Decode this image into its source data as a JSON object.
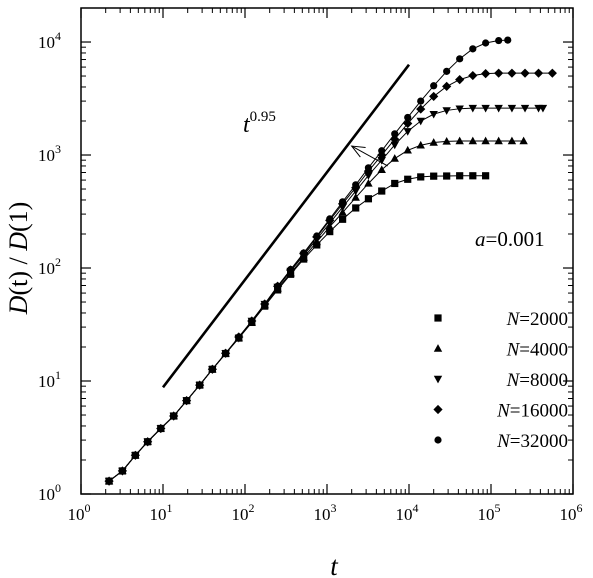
{
  "chart_data": {
    "type": "scatter",
    "xscale": "log",
    "yscale": "log",
    "xlim": [
      1,
      1000000
    ],
    "ylim": [
      1,
      20000
    ],
    "xlabel": "t",
    "ylabel": "D(t) / D(1)",
    "xticks": [
      {
        "value": 1,
        "base": "10",
        "exp": "0"
      },
      {
        "value": 10,
        "base": "10",
        "exp": "1"
      },
      {
        "value": 100,
        "base": "10",
        "exp": "2"
      },
      {
        "value": 1000,
        "base": "10",
        "exp": "3"
      },
      {
        "value": 10000,
        "base": "10",
        "exp": "4"
      },
      {
        "value": 100000,
        "base": "10",
        "exp": "5"
      },
      {
        "value": 1000000,
        "base": "10",
        "exp": "6"
      }
    ],
    "yticks": [
      {
        "value": 1,
        "base": "10",
        "exp": "0"
      },
      {
        "value": 10,
        "base": "10",
        "exp": "1"
      },
      {
        "value": 100,
        "base": "10",
        "exp": "2"
      },
      {
        "value": 1000,
        "base": "10",
        "exp": "3"
      },
      {
        "value": 10000,
        "base": "10",
        "exp": "4"
      }
    ],
    "annotations": {
      "param_var": "a",
      "param_value": "=0.001",
      "slope_base": "t",
      "slope_exp": "0.95"
    },
    "reference_line": {
      "exponent": 0.95,
      "x": [
        10,
        10000
      ],
      "y": [
        8.8,
        6300
      ]
    },
    "arrow": {
      "from": [
        5500,
        800
      ],
      "to": [
        2000,
        1200
      ]
    },
    "legend": {
      "position": "center-right"
    },
    "series": [
      {
        "var": "N",
        "label": "=2000",
        "marker": "square",
        "points": [
          [
            2.2,
            1.3
          ],
          [
            3.2,
            1.6
          ],
          [
            4.6,
            2.2
          ],
          [
            6.5,
            2.9
          ],
          [
            9.4,
            3.8
          ],
          [
            13.5,
            4.9
          ],
          [
            19.4,
            6.7
          ],
          [
            28,
            9.2
          ],
          [
            40,
            12.7
          ],
          [
            58,
            17.5
          ],
          [
            84,
            24
          ],
          [
            121,
            33
          ],
          [
            174,
            46
          ],
          [
            250,
            64
          ],
          [
            360,
            88
          ],
          [
            520,
            120
          ],
          [
            750,
            160
          ],
          [
            1080,
            210
          ],
          [
            1550,
            270
          ],
          [
            2240,
            340
          ],
          [
            3200,
            410
          ],
          [
            4650,
            480
          ],
          [
            6700,
            560
          ],
          [
            9650,
            610
          ],
          [
            13900,
            640
          ],
          [
            20000,
            650
          ],
          [
            28800,
            652
          ],
          [
            41500,
            655
          ],
          [
            60000,
            655
          ],
          [
            86000,
            655
          ]
        ]
      },
      {
        "var": "N",
        "label": "=4000",
        "marker": "triangle-up",
        "points": [
          [
            2.2,
            1.3
          ],
          [
            3.2,
            1.6
          ],
          [
            4.6,
            2.2
          ],
          [
            6.5,
            2.9
          ],
          [
            9.4,
            3.8
          ],
          [
            13.5,
            4.9
          ],
          [
            19.4,
            6.7
          ],
          [
            28,
            9.2
          ],
          [
            40,
            12.7
          ],
          [
            58,
            17.5
          ],
          [
            84,
            24
          ],
          [
            121,
            33
          ],
          [
            174,
            47
          ],
          [
            250,
            66
          ],
          [
            360,
            90
          ],
          [
            520,
            124
          ],
          [
            750,
            170
          ],
          [
            1080,
            232
          ],
          [
            1550,
            310
          ],
          [
            2240,
            420
          ],
          [
            3200,
            560
          ],
          [
            4650,
            740
          ],
          [
            6700,
            930
          ],
          [
            9650,
            1100
          ],
          [
            13900,
            1220
          ],
          [
            20000,
            1290
          ],
          [
            28800,
            1320
          ],
          [
            41500,
            1330
          ],
          [
            60000,
            1330
          ],
          [
            86000,
            1330
          ],
          [
            124000,
            1330
          ],
          [
            180000,
            1330
          ],
          [
            250000,
            1330
          ]
        ]
      },
      {
        "var": "N",
        "label": "=8000",
        "marker": "triangle-down",
        "points": [
          [
            2.2,
            1.3
          ],
          [
            3.2,
            1.6
          ],
          [
            4.6,
            2.2
          ],
          [
            6.5,
            2.9
          ],
          [
            9.4,
            3.8
          ],
          [
            13.5,
            4.9
          ],
          [
            19.4,
            6.7
          ],
          [
            28,
            9.2
          ],
          [
            40,
            12.7
          ],
          [
            58,
            17.6
          ],
          [
            84,
            24
          ],
          [
            121,
            34
          ],
          [
            174,
            48
          ],
          [
            250,
            68
          ],
          [
            360,
            94
          ],
          [
            520,
            130
          ],
          [
            750,
            180
          ],
          [
            1080,
            250
          ],
          [
            1550,
            345
          ],
          [
            2240,
            480
          ],
          [
            3200,
            660
          ],
          [
            4650,
            900
          ],
          [
            6700,
            1230
          ],
          [
            9650,
            1620
          ],
          [
            13900,
            2000
          ],
          [
            20000,
            2300
          ],
          [
            28800,
            2480
          ],
          [
            41500,
            2570
          ],
          [
            60000,
            2600
          ],
          [
            86000,
            2600
          ],
          [
            124000,
            2600
          ],
          [
            180000,
            2600
          ],
          [
            260000,
            2600
          ],
          [
            380000,
            2600
          ],
          [
            430000,
            2600
          ]
        ]
      },
      {
        "var": "N",
        "label": "=16000",
        "marker": "diamond",
        "points": [
          [
            2.2,
            1.3
          ],
          [
            3.2,
            1.6
          ],
          [
            4.6,
            2.2
          ],
          [
            6.5,
            2.9
          ],
          [
            9.4,
            3.8
          ],
          [
            13.5,
            4.9
          ],
          [
            19.4,
            6.7
          ],
          [
            28,
            9.2
          ],
          [
            40,
            12.7
          ],
          [
            58,
            17.6
          ],
          [
            84,
            24.5
          ],
          [
            121,
            34
          ],
          [
            174,
            48
          ],
          [
            250,
            69
          ],
          [
            360,
            96
          ],
          [
            520,
            134
          ],
          [
            750,
            188
          ],
          [
            1080,
            264
          ],
          [
            1550,
            370
          ],
          [
            2240,
            515
          ],
          [
            3200,
            720
          ],
          [
            4650,
            1000
          ],
          [
            6700,
            1380
          ],
          [
            9650,
            1900
          ],
          [
            13900,
            2550
          ],
          [
            20000,
            3300
          ],
          [
            28800,
            4050
          ],
          [
            41500,
            4650
          ],
          [
            60000,
            5050
          ],
          [
            86000,
            5250
          ],
          [
            124000,
            5300
          ],
          [
            180000,
            5300
          ],
          [
            260000,
            5300
          ],
          [
            380000,
            5300
          ],
          [
            560000,
            5300
          ]
        ]
      },
      {
        "var": "N",
        "label": "=32000",
        "marker": "circle",
        "points": [
          [
            2.2,
            1.3
          ],
          [
            3.2,
            1.6
          ],
          [
            4.6,
            2.2
          ],
          [
            6.5,
            2.9
          ],
          [
            9.4,
            3.8
          ],
          [
            13.5,
            4.9
          ],
          [
            19.4,
            6.7
          ],
          [
            28,
            9.2
          ],
          [
            40,
            12.7
          ],
          [
            58,
            17.6
          ],
          [
            84,
            24.5
          ],
          [
            121,
            34
          ],
          [
            174,
            48
          ],
          [
            250,
            69
          ],
          [
            360,
            97
          ],
          [
            520,
            136
          ],
          [
            750,
            192
          ],
          [
            1080,
            272
          ],
          [
            1550,
            385
          ],
          [
            2240,
            545
          ],
          [
            3200,
            770
          ],
          [
            4650,
            1090
          ],
          [
            6700,
            1540
          ],
          [
            9650,
            2150
          ],
          [
            13900,
            3000
          ],
          [
            20000,
            4100
          ],
          [
            28800,
            5500
          ],
          [
            41500,
            7100
          ],
          [
            60000,
            8700
          ],
          [
            86000,
            9800
          ],
          [
            124000,
            10300
          ],
          [
            160000,
            10400
          ]
        ]
      }
    ]
  }
}
